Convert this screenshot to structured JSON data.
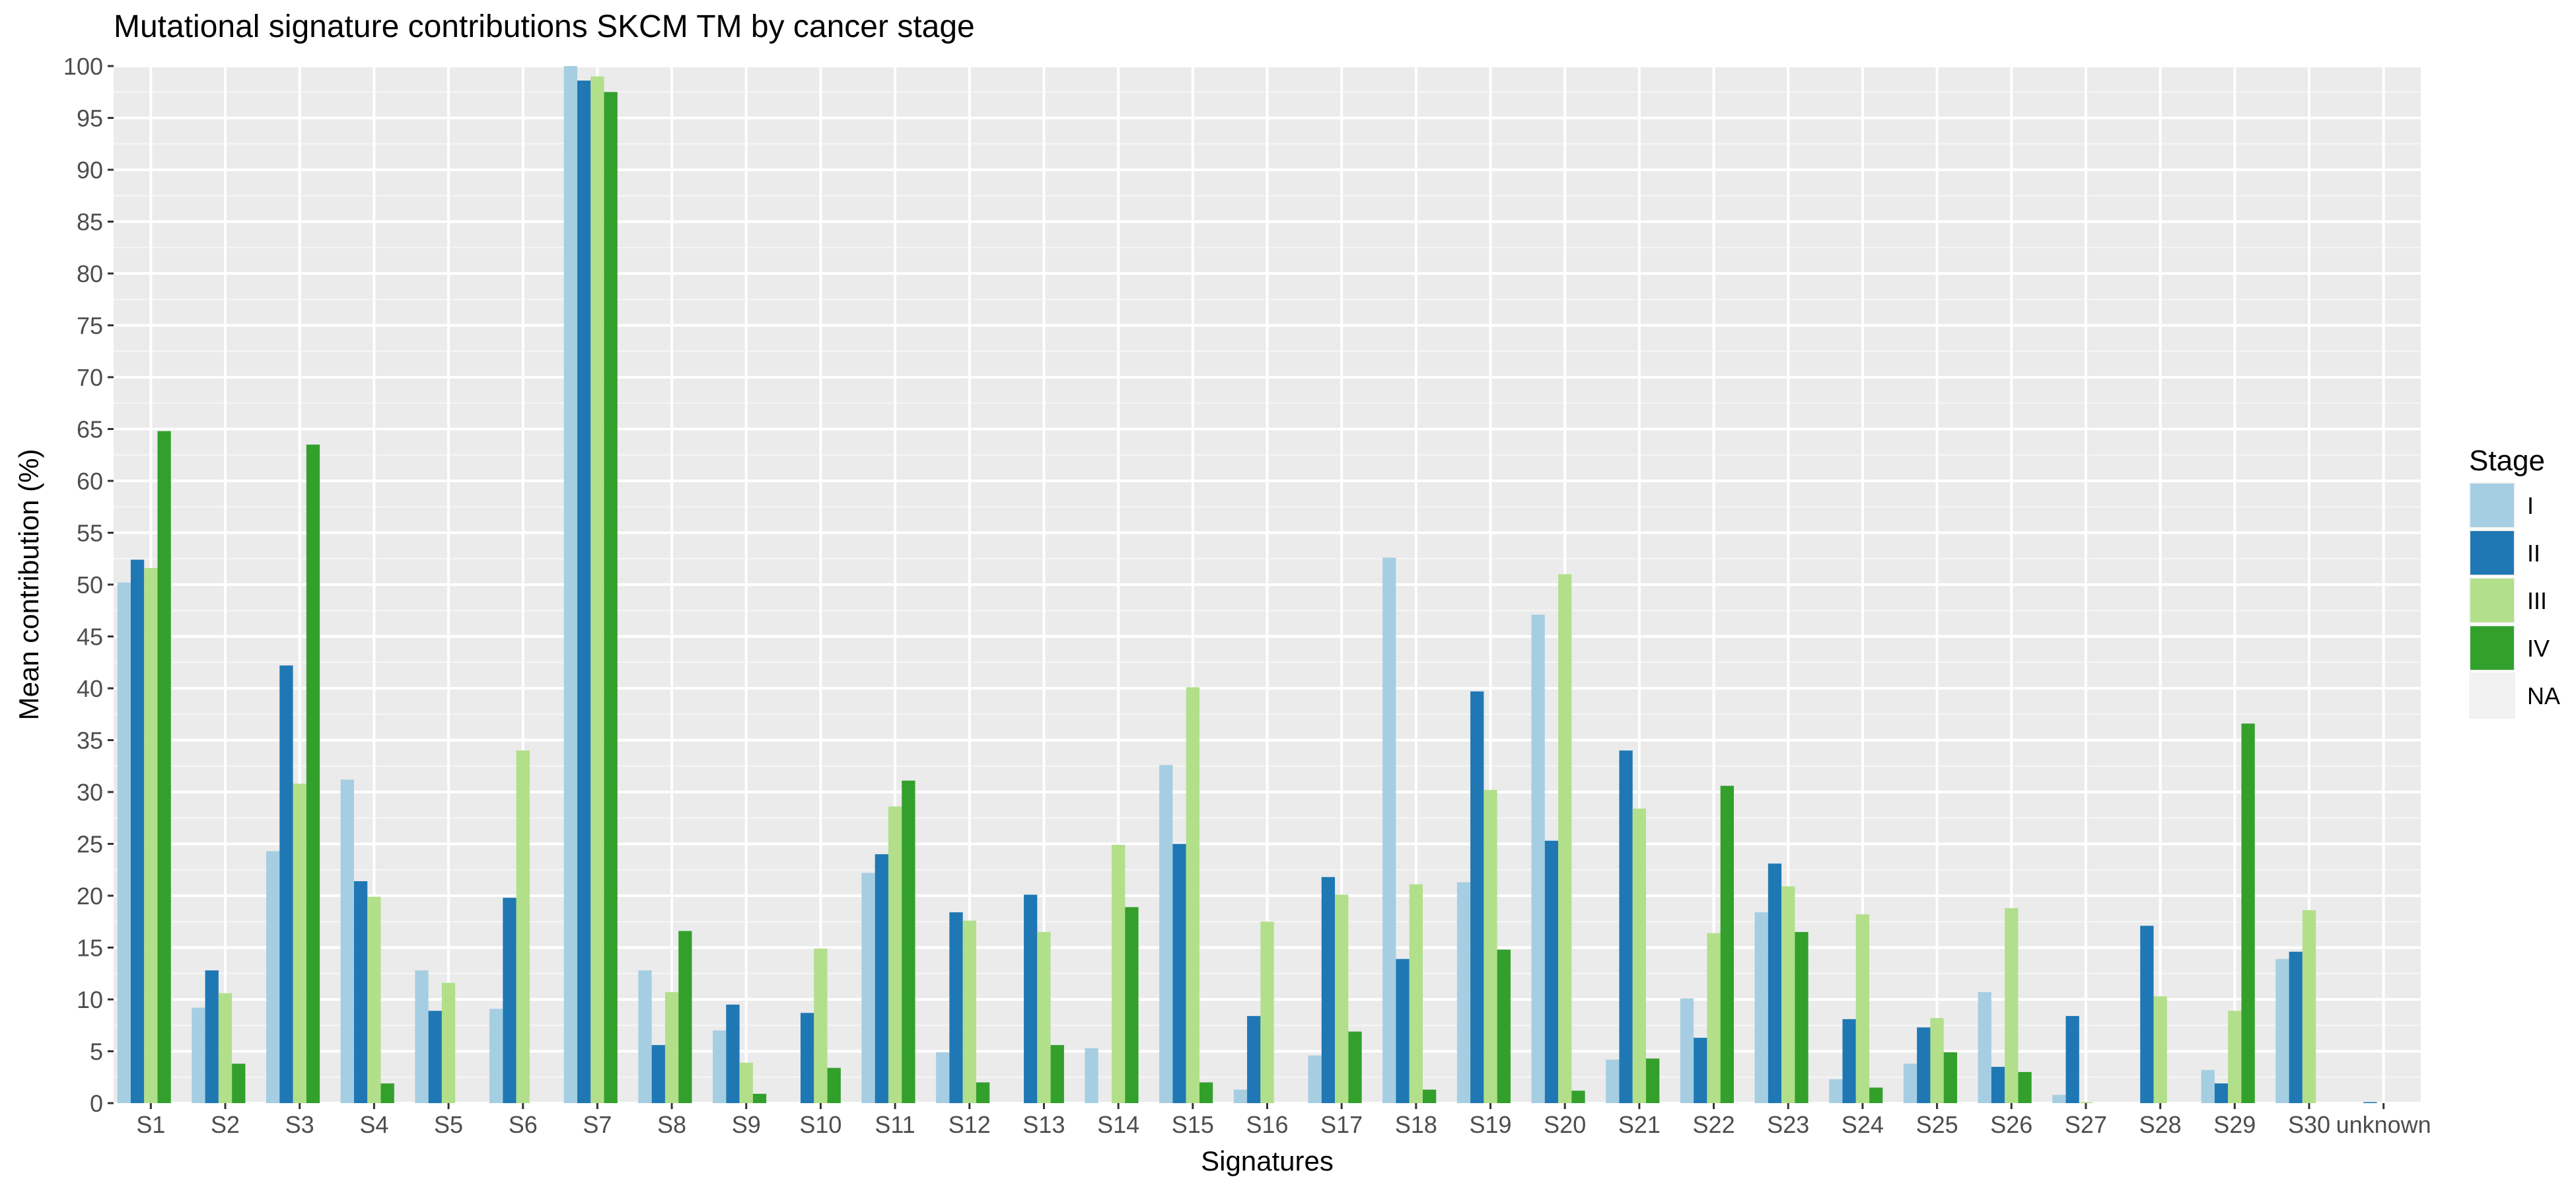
{
  "chart_data": {
    "type": "bar",
    "title": "Mutational signature contributions SKCM TM by cancer stage",
    "xlabel": "Signatures",
    "ylabel": "Mean contribution (%)",
    "ylim": [
      0,
      100
    ],
    "yticks": [
      0,
      5,
      10,
      15,
      20,
      25,
      30,
      35,
      40,
      45,
      50,
      55,
      60,
      65,
      70,
      75,
      80,
      85,
      90,
      95,
      100
    ],
    "grid": true,
    "legend_title": "Stage",
    "legend_position": "right",
    "categories": [
      "S1",
      "S2",
      "S3",
      "S4",
      "S5",
      "S6",
      "S7",
      "S8",
      "S9",
      "S10",
      "S11",
      "S12",
      "S13",
      "S14",
      "S15",
      "S16",
      "S17",
      "S18",
      "S19",
      "S20",
      "S21",
      "S22",
      "S23",
      "S24",
      "S25",
      "S26",
      "S27",
      "S28",
      "S29",
      "S30",
      "unknown"
    ],
    "series": [
      {
        "name": "I",
        "color": "#a6cee3",
        "values": [
          50.2,
          9.2,
          24.3,
          31.2,
          12.8,
          9.1,
          100.0,
          12.8,
          7.0,
          0,
          22.2,
          4.9,
          0,
          5.3,
          32.6,
          1.3,
          4.6,
          52.6,
          21.3,
          47.1,
          4.2,
          10.1,
          18.4,
          2.3,
          3.8,
          10.7,
          0.8,
          0,
          3.2,
          13.9,
          0
        ]
      },
      {
        "name": "II",
        "color": "#1f78b4",
        "values": [
          52.4,
          12.8,
          42.2,
          21.4,
          8.9,
          19.8,
          98.6,
          5.6,
          9.5,
          8.7,
          24.0,
          18.4,
          20.1,
          0,
          25.0,
          8.4,
          21.8,
          13.9,
          39.7,
          25.3,
          34.0,
          6.3,
          23.1,
          8.1,
          7.3,
          3.5,
          8.4,
          17.1,
          1.9,
          14.6,
          0.1
        ]
      },
      {
        "name": "III",
        "color": "#b2df8a",
        "values": [
          51.6,
          10.6,
          30.8,
          19.9,
          11.6,
          34.0,
          99.0,
          10.7,
          3.9,
          14.9,
          28.6,
          17.6,
          16.5,
          24.9,
          40.1,
          17.5,
          20.1,
          21.1,
          30.2,
          51.0,
          28.4,
          16.4,
          20.9,
          18.2,
          8.2,
          18.8,
          0.1,
          10.3,
          8.9,
          18.6,
          0
        ]
      },
      {
        "name": "IV",
        "color": "#33a02c",
        "values": [
          64.8,
          3.8,
          63.5,
          1.9,
          0,
          0,
          97.5,
          16.6,
          0.9,
          3.4,
          31.1,
          2.0,
          5.6,
          18.9,
          2.0,
          0,
          6.9,
          1.3,
          14.8,
          1.2,
          4.3,
          30.6,
          16.5,
          1.5,
          4.9,
          3.0,
          0,
          0,
          36.6,
          0,
          0
        ]
      },
      {
        "name": "NA",
        "color": "#f2f2f2",
        "values": [
          0,
          0,
          0,
          0,
          0,
          0,
          0,
          0,
          0,
          0,
          0,
          0,
          0,
          0,
          0,
          0,
          0,
          0,
          0,
          0,
          0,
          0,
          0,
          0,
          0,
          0,
          0,
          0,
          0,
          0,
          0
        ]
      }
    ]
  }
}
